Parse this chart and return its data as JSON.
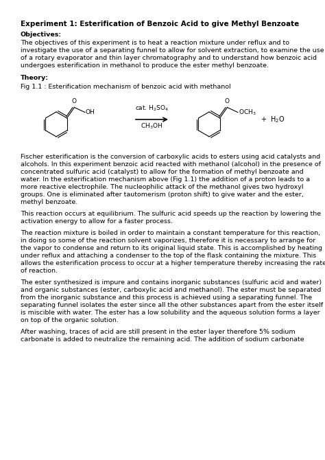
{
  "title": "Experiment 1: Esterification of Benzoic Acid to give Methyl Benzoate",
  "objectives_label": "Objectives:",
  "objectives_text": "The objectives of this experiment is to heat a reaction mixture under reflux and to\ninvestigate the use of a separating funnel to allow for solvent extraction, to examine the use\nof a rotary evaporator and thin layer chromatography and to understand how benzoic acid\nundergoes esterification in methanol to produce the ester methyl benzoate.",
  "theory_label": "Theory:",
  "fig_caption": "Fig 1.1 : Esterification mechanism of benzoic acid with methanol",
  "paragraph1": "Fischer esterification is the conversion of carboxylic acids to esters using acid catalysts and\nalcohols. In this experiment benzoic acid reacted with methanol (alcohol) in the presence of\nconcentrated sulfuric acid (catalyst) to allow for the formation of methyl benzoate and\nwater. In the esterification mechanism above (Fig 1.1) the addition of a proton leads to a\nmore reactive electrophile. The nucleophilic attack of the methanol gives two hydroxyl\ngroups. One is eliminated after tautomerism (proton shift) to give water and the ester,\nmethyl benzoate.",
  "paragraph2": "This reaction occurs at equilibrium. The sulfuric acid speeds up the reaction by lowering the\nactivation energy to allow for a faster process.",
  "paragraph3": "The reaction mixture is boiled in order to maintain a constant temperature for this reaction,\nin doing so some of the reaction solvent vaporizes, therefore it is necessary to arrange for\nthe vapor to condense and return to its original liquid state. This is accomplished by heating\nunder reflux and attaching a condenser to the top of the flask containing the mixture. This\nallows the esterification process to occur at a higher temperature thereby increasing the rate\nof reaction.",
  "paragraph4": "The ester synthesized is impure and contains inorganic substances (sulfuric acid and water)\nand organic substances (ester, carboxylic acid and methanol). The ester must be separated\nfrom the inorganic substance and this process is achieved using a separating funnel. The\nseparating funnel isolates the ester since all the other substances apart from the ester itself\nis miscible with water. The ester has a low solubility and the aqueous solution forms a layer\non top of the organic solution.",
  "paragraph5": "After washing, traces of acid are still present in the ester layer therefore 5% sodium\ncarbonate is added to neutralize the remaining acid. The addition of sodium carbonate",
  "background_color": "#ffffff",
  "text_color": "#000000",
  "font_size_title": 7.5,
  "font_size_body": 6.8,
  "font_size_chem": 6.5
}
